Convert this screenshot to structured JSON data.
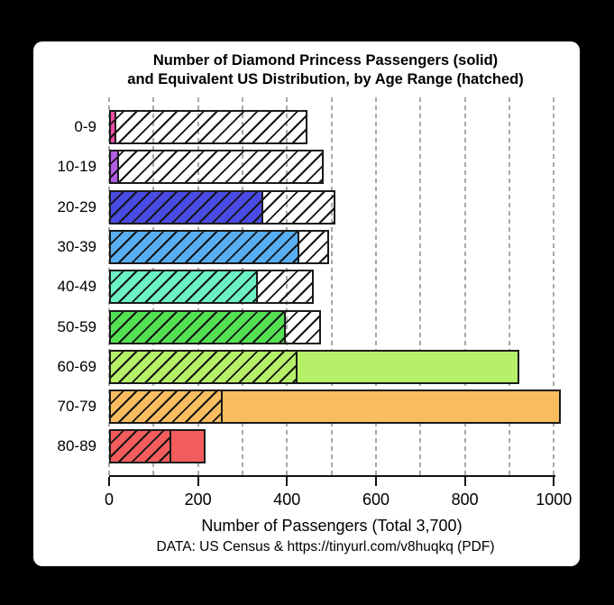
{
  "window": {
    "background_color": "#000000",
    "panel_color": "#ffffff"
  },
  "chart_data": {
    "type": "bar",
    "orientation": "horizontal",
    "title": "Number of Diamond Princess Passengers (solid)",
    "subtitle": "and Equivalent US Distribution, by Age Range (hatched)",
    "xlabel": "Number of Passengers (Total 3,700)",
    "caption": "DATA: US Census & https://tinyurl.com/v8huqkq (PDF)",
    "categories": [
      "0-9",
      "10-19",
      "20-29",
      "30-39",
      "40-49",
      "50-59",
      "60-69",
      "70-79",
      "80-89"
    ],
    "series": [
      {
        "name": "Diamond Princess passengers",
        "style": "solid",
        "values": [
          16,
          23,
          347,
          428,
          334,
          398,
          923,
          1015,
          216
        ]
      },
      {
        "name": "Equivalent US distribution",
        "style": "hatched",
        "values": [
          445,
          483,
          508,
          494,
          461,
          477,
          424,
          256,
          139
        ]
      }
    ],
    "bar_colors": [
      "#F04CA4",
      "#B55CE6",
      "#4A4AE4",
      "#58AEF2",
      "#6CF2C2",
      "#53E053",
      "#B5F068",
      "#F9BD60",
      "#F25C5C"
    ],
    "bar_border_color": "#1a1a1a",
    "xlim": [
      0,
      1000
    ],
    "xticks": [
      0,
      200,
      400,
      600,
      800,
      1000
    ],
    "grid_interval": 100,
    "grid_max": 1000,
    "grid_color": "#a8a8a8",
    "grid_style": "dashed",
    "legend": "none"
  }
}
